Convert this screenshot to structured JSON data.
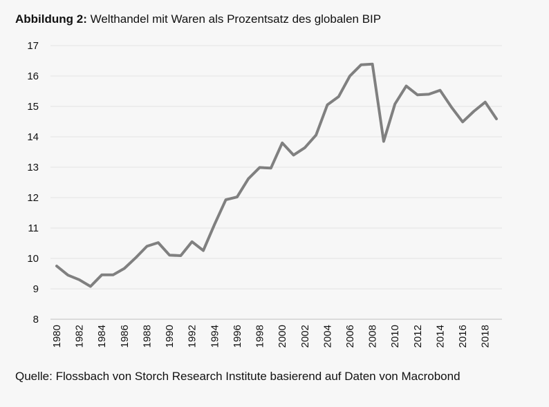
{
  "figure": {
    "title_label": "Abbildung 2:",
    "title_text": "Welthandel mit Waren als Prozentsatz des globalen BIP",
    "source": "Quelle: Flossbach von Storch Research Institute basierend auf Daten von Macrobond"
  },
  "chart_data": {
    "type": "line",
    "title": "Welthandel mit Waren als Prozentsatz des globalen BIP",
    "xlabel": "",
    "ylabel": "",
    "ylim": [
      8,
      17
    ],
    "yticks": [
      8,
      9,
      10,
      11,
      12,
      13,
      14,
      15,
      16,
      17
    ],
    "xticks": [
      "1980",
      "1982",
      "1984",
      "1986",
      "1988",
      "1990",
      "1992",
      "1994",
      "1996",
      "1998",
      "2000",
      "2002",
      "2004",
      "2006",
      "2008",
      "2010",
      "2012",
      "2014",
      "2016",
      "2018"
    ],
    "grid": true,
    "legend": "none",
    "line_color": "#808080",
    "series": [
      {
        "x": [
          1980,
          1981,
          1982,
          1983,
          1984,
          1985,
          1986,
          1987,
          1988,
          1989,
          1990,
          1991,
          1992,
          1993,
          1994,
          1995,
          1996,
          1997,
          1998,
          1999,
          2000,
          2001,
          2002,
          2003,
          2004,
          2005,
          2006,
          2007,
          2008,
          2009,
          2010,
          2011,
          2012,
          2013,
          2014,
          2015,
          2016,
          2017,
          2018,
          2019
        ],
        "values": [
          9.75,
          9.45,
          9.3,
          9.08,
          9.46,
          9.46,
          9.67,
          10.02,
          10.4,
          10.52,
          10.11,
          10.09,
          10.55,
          10.26,
          11.12,
          11.93,
          12.02,
          12.62,
          12.99,
          12.97,
          13.8,
          13.4,
          13.64,
          14.06,
          15.05,
          15.32,
          16.0,
          16.37,
          16.39,
          13.85,
          15.08,
          15.67,
          15.38,
          15.4,
          15.53,
          14.98,
          14.49,
          14.84,
          15.14,
          14.59
        ]
      }
    ]
  }
}
